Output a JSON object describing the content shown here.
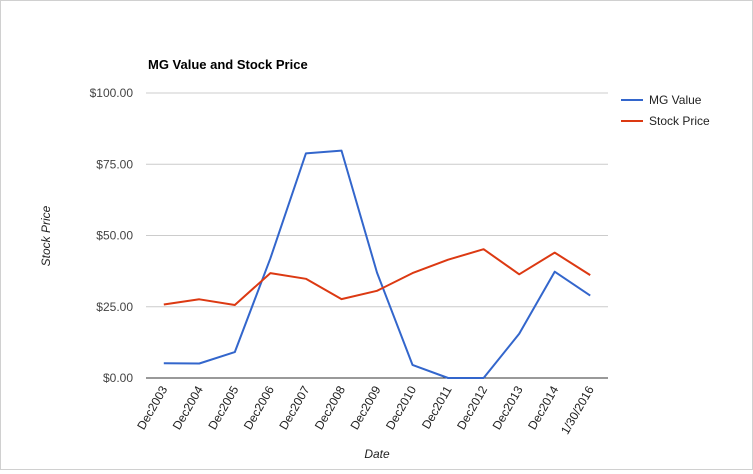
{
  "chart_data": {
    "type": "line",
    "title": "MG Value and Stock Price",
    "xlabel": "Date",
    "ylabel": "Stock Price",
    "categories": [
      "Dec2003",
      "Dec2004",
      "Dec2005",
      "Dec2006",
      "Dec2007",
      "Dec2008",
      "Dec2009",
      "Dec2010",
      "Dec2011",
      "Dec2012",
      "Dec2013",
      "Dec2014",
      "1/30/2016"
    ],
    "ylim": [
      0,
      100
    ],
    "yticks": [
      0,
      25,
      50,
      75,
      100
    ],
    "ytick_labels": [
      "$0.00",
      "$25.00",
      "$50.00",
      "$75.00",
      "$100.00"
    ],
    "grid": true,
    "legend_position": "right",
    "series": [
      {
        "name": "MG Value",
        "color": "#3366cc",
        "values": [
          5.2,
          5.1,
          9.1,
          42.0,
          78.8,
          79.8,
          37.0,
          4.6,
          0.0,
          0.0,
          15.5,
          37.3,
          28.9
        ]
      },
      {
        "name": "Stock Price",
        "color": "#dc3912",
        "values": [
          25.8,
          27.6,
          25.6,
          36.8,
          34.8,
          27.7,
          30.6,
          36.8,
          41.5,
          45.2,
          36.4,
          44.0,
          36.1
        ]
      }
    ]
  }
}
